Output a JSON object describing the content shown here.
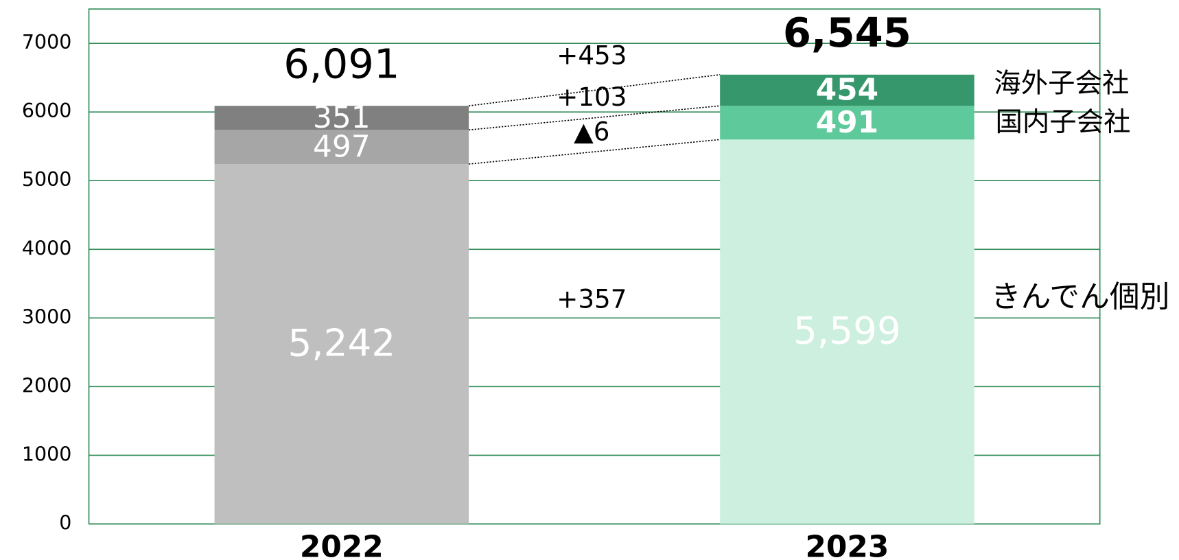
{
  "chart_data": {
    "type": "stacked_bar",
    "categories": [
      "2022",
      "2023"
    ],
    "series": [
      {
        "name": "きんでん個別",
        "colors": [
          "#bfbfbf",
          "#ccefdf"
        ],
        "values": [
          5242,
          5599
        ],
        "value_labels": [
          "5,242",
          "5,599"
        ]
      },
      {
        "name": "国内子会社",
        "colors": [
          "#a6a6a6",
          "#5ec99a"
        ],
        "values": [
          497,
          491
        ]
      },
      {
        "name": "海外子会社",
        "colors": [
          "#808080",
          "#35976b"
        ],
        "values": [
          351,
          454
        ]
      }
    ],
    "totals": [
      6091,
      6545
    ],
    "total_labels": [
      "6,091",
      "6,545"
    ],
    "annotations": [
      "+357",
      "▲6",
      "+103",
      "+453"
    ],
    "ylim": [
      0,
      7500
    ],
    "yticks": [
      0,
      1000,
      2000,
      3000,
      4000,
      5000,
      6000,
      7000
    ],
    "grid": true,
    "grid_color": "#2e8b57"
  }
}
